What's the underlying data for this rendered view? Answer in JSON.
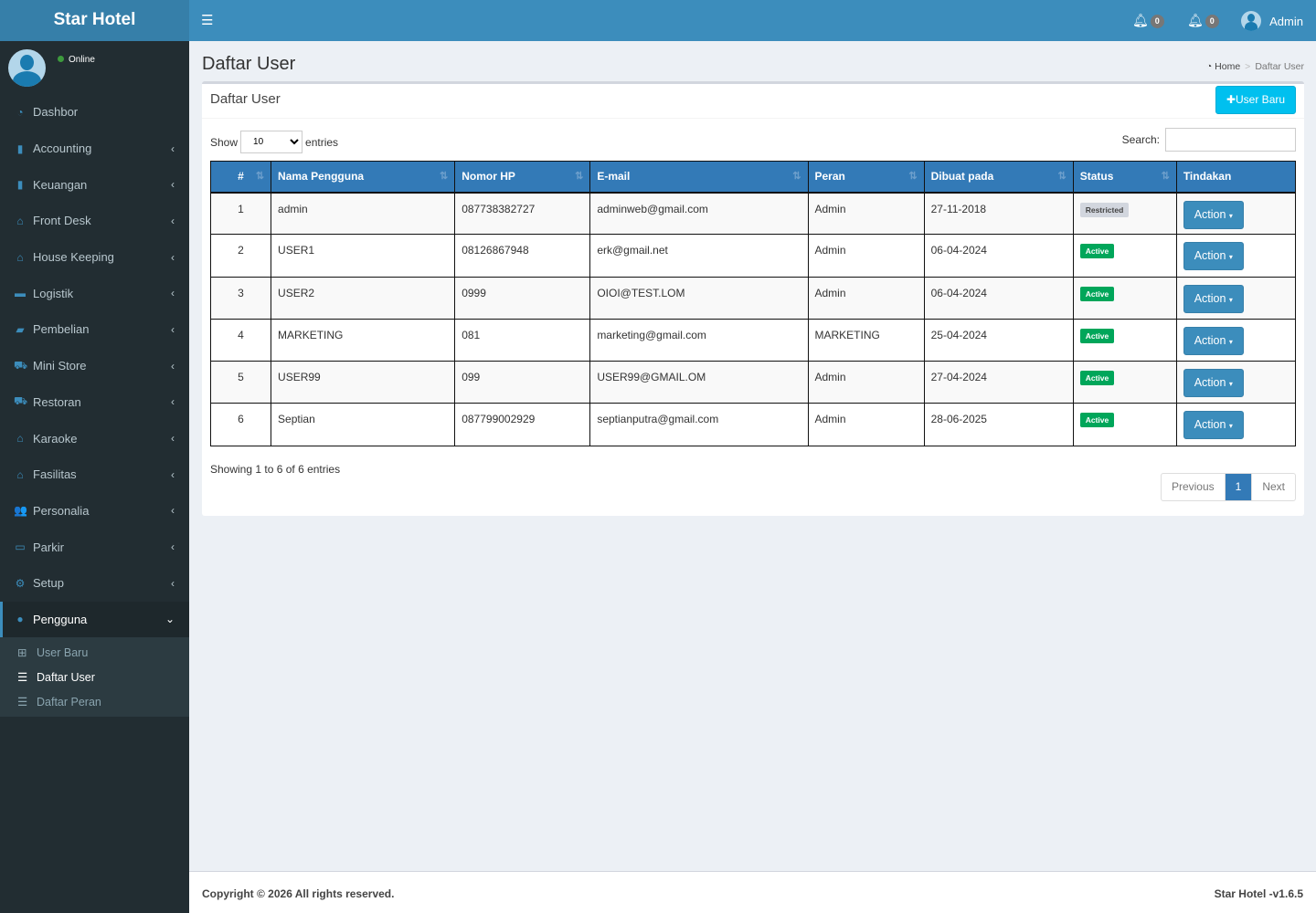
{
  "app": {
    "title": "Star Hotel",
    "status": "Online"
  },
  "sidebar": {
    "items": [
      {
        "label": "Dashbor",
        "icon": "dashboard-icon",
        "glyph": "◔"
      },
      {
        "label": "Accounting",
        "icon": "book-icon",
        "glyph": "▮"
      },
      {
        "label": "Keuangan",
        "icon": "book-icon",
        "glyph": "▮"
      },
      {
        "label": "Front Desk",
        "icon": "bank-icon",
        "glyph": "⌂"
      },
      {
        "label": "House Keeping",
        "icon": "bank-icon",
        "glyph": "⌂"
      },
      {
        "label": "Logistik",
        "icon": "briefcase-icon",
        "glyph": "▬"
      },
      {
        "label": "Pembelian",
        "icon": "truck-icon",
        "glyph": "▰"
      },
      {
        "label": "Mini Store",
        "icon": "cart-icon",
        "glyph": "⛟"
      },
      {
        "label": "Restoran",
        "icon": "cart-icon",
        "glyph": "⛟"
      },
      {
        "label": "Karaoke",
        "icon": "bank-icon",
        "glyph": "⌂"
      },
      {
        "label": "Fasilitas",
        "icon": "bank-icon",
        "glyph": "⌂"
      },
      {
        "label": "Personalia",
        "icon": "users-icon",
        "glyph": "👥"
      },
      {
        "label": "Parkir",
        "icon": "car-icon",
        "glyph": "▭"
      },
      {
        "label": "Setup",
        "icon": "cogs-icon",
        "glyph": "⚙"
      },
      {
        "label": "Pengguna",
        "icon": "user-icon",
        "glyph": "●"
      }
    ],
    "sub": [
      {
        "label": "User Baru"
      },
      {
        "label": "Daftar User"
      },
      {
        "label": "Daftar Peran"
      }
    ]
  },
  "topbar": {
    "notif1": "0",
    "notif2": "0",
    "user": "Admin"
  },
  "page": {
    "title": "Daftar User",
    "breadcrumb": [
      "Home",
      "Daftar User"
    ]
  },
  "box": {
    "title": "Daftar User",
    "new_button": "User Baru",
    "show": "Show",
    "entries": "entries",
    "length": "10",
    "search": "Search:",
    "columns": [
      "#",
      "Nama Pengguna",
      "Nomor HP",
      "E-mail",
      "Peran",
      "Dibuat pada",
      "Status",
      "Tindakan"
    ],
    "rows": [
      [
        "1",
        "admin",
        "087738382727",
        "adminweb@gmail.com",
        "Admin",
        "27-11-2018",
        "Restricted",
        "Action"
      ],
      [
        "2",
        "USER1",
        "08126867948",
        "erk@gmail.net",
        "Admin",
        "06-04-2024",
        "Active",
        "Action"
      ],
      [
        "3",
        "USER2",
        "0999",
        "OIOI@TEST.LOM",
        "Admin",
        "06-04-2024",
        "Active",
        "Action"
      ],
      [
        "4",
        "MARKETING",
        "081",
        "marketing@gmail.com",
        "MARKETING",
        "25-04-2024",
        "Active",
        "Action"
      ],
      [
        "5",
        "USER99",
        "099",
        "USER99@GMAIL.OM",
        "Admin",
        "27-04-2024",
        "Active",
        "Action"
      ],
      [
        "6",
        "Septian",
        "087799002929",
        "septianputra@gmail.com",
        "Admin",
        "28-06-2025",
        "Active",
        "Action"
      ]
    ],
    "info": "Showing 1 to 6 of 6 entries",
    "prev": "Previous",
    "page": "1",
    "next": "Next"
  },
  "footer": {
    "copyright": "Copyright © 2026 All rights reserved.",
    "version": "Star Hotel -v1.6.5"
  }
}
